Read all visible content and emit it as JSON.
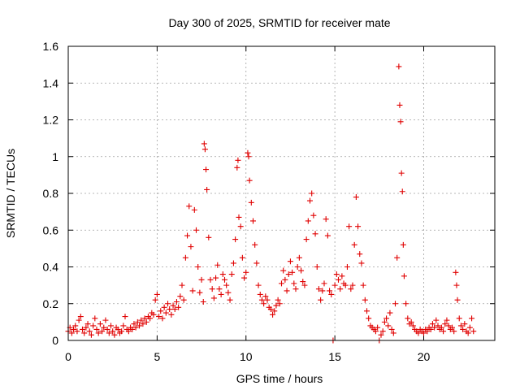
{
  "chart_data": {
    "type": "scatter",
    "title": "Day 300 of 2025, SRMTID for receiver mate",
    "xlabel": "GPS time / hours",
    "ylabel": "SRMTID / TECUs",
    "xlim": [
      0,
      24
    ],
    "ylim": [
      0,
      1.6
    ],
    "xticks": [
      0,
      5,
      10,
      15,
      20
    ],
    "xtick_labels": [
      "0",
      "5",
      "10",
      "15",
      "20"
    ],
    "yticks": [
      0,
      0.2,
      0.4,
      0.6,
      0.8,
      1.0,
      1.2,
      1.4,
      1.6
    ],
    "ytick_labels": [
      "0",
      "0.2",
      "0.4",
      "0.6",
      "0.8",
      "1",
      "1.2",
      "1.4",
      "1.6"
    ],
    "grid": true,
    "marker": "+",
    "color": "#e00000",
    "series": [
      {
        "name": "SRMTID",
        "points": [
          [
            0.0,
            0.05
          ],
          [
            0.1,
            0.07
          ],
          [
            0.2,
            0.04
          ],
          [
            0.3,
            0.06
          ],
          [
            0.4,
            0.08
          ],
          [
            0.5,
            0.05
          ],
          [
            0.6,
            0.11
          ],
          [
            0.7,
            0.13
          ],
          [
            0.8,
            0.06
          ],
          [
            0.9,
            0.04
          ],
          [
            1.0,
            0.07
          ],
          [
            1.1,
            0.09
          ],
          [
            1.2,
            0.05
          ],
          [
            1.3,
            0.03
          ],
          [
            1.4,
            0.08
          ],
          [
            1.5,
            0.12
          ],
          [
            1.6,
            0.06
          ],
          [
            1.7,
            0.04
          ],
          [
            1.8,
            0.09
          ],
          [
            1.9,
            0.05
          ],
          [
            2.0,
            0.07
          ],
          [
            2.1,
            0.11
          ],
          [
            2.2,
            0.06
          ],
          [
            2.3,
            0.04
          ],
          [
            2.4,
            0.08
          ],
          [
            2.5,
            0.05
          ],
          [
            2.6,
            0.03
          ],
          [
            2.7,
            0.07
          ],
          [
            2.8,
            0.06
          ],
          [
            2.9,
            0.04
          ],
          [
            3.0,
            0.05
          ],
          [
            3.1,
            0.08
          ],
          [
            3.2,
            0.13
          ],
          [
            3.3,
            0.06
          ],
          [
            3.4,
            0.05
          ],
          [
            3.5,
            0.07
          ],
          [
            3.6,
            0.06
          ],
          [
            3.7,
            0.09
          ],
          [
            3.8,
            0.07
          ],
          [
            3.9,
            0.1
          ],
          [
            4.0,
            0.08
          ],
          [
            4.1,
            0.11
          ],
          [
            4.2,
            0.09
          ],
          [
            4.3,
            0.12
          ],
          [
            4.4,
            0.1
          ],
          [
            4.5,
            0.13
          ],
          [
            4.6,
            0.12
          ],
          [
            4.7,
            0.15
          ],
          [
            4.8,
            0.14
          ],
          [
            4.9,
            0.22
          ],
          [
            5.0,
            0.25
          ],
          [
            5.1,
            0.13
          ],
          [
            5.2,
            0.16
          ],
          [
            5.3,
            0.12
          ],
          [
            5.4,
            0.18
          ],
          [
            5.5,
            0.15
          ],
          [
            5.6,
            0.2
          ],
          [
            5.7,
            0.17
          ],
          [
            5.8,
            0.14
          ],
          [
            5.9,
            0.19
          ],
          [
            6.0,
            0.17
          ],
          [
            6.1,
            0.21
          ],
          [
            6.2,
            0.18
          ],
          [
            6.3,
            0.24
          ],
          [
            6.4,
            0.3
          ],
          [
            6.5,
            0.22
          ],
          [
            6.6,
            0.45
          ],
          [
            6.7,
            0.57
          ],
          [
            6.8,
            0.73
          ],
          [
            6.9,
            0.51
          ],
          [
            7.0,
            0.27
          ],
          [
            7.1,
            0.71
          ],
          [
            7.2,
            0.6
          ],
          [
            7.3,
            0.4
          ],
          [
            7.4,
            0.26
          ],
          [
            7.5,
            0.33
          ],
          [
            7.6,
            0.21
          ],
          [
            7.65,
            1.07
          ],
          [
            7.7,
            1.04
          ],
          [
            7.75,
            0.93
          ],
          [
            7.8,
            0.82
          ],
          [
            7.9,
            0.56
          ],
          [
            8.0,
            0.33
          ],
          [
            8.1,
            0.28
          ],
          [
            8.2,
            0.23
          ],
          [
            8.3,
            0.34
          ],
          [
            8.4,
            0.41
          ],
          [
            8.5,
            0.28
          ],
          [
            8.6,
            0.25
          ],
          [
            8.7,
            0.36
          ],
          [
            8.8,
            0.33
          ],
          [
            8.9,
            0.3
          ],
          [
            9.0,
            0.26
          ],
          [
            9.1,
            0.22
          ],
          [
            9.2,
            0.36
          ],
          [
            9.3,
            0.42
          ],
          [
            9.4,
            0.55
          ],
          [
            9.5,
            0.94
          ],
          [
            9.55,
            0.98
          ],
          [
            9.6,
            0.67
          ],
          [
            9.7,
            0.62
          ],
          [
            9.8,
            0.45
          ],
          [
            9.9,
            0.34
          ],
          [
            10.0,
            0.37
          ],
          [
            10.1,
            1.02
          ],
          [
            10.15,
            1.0
          ],
          [
            10.2,
            0.87
          ],
          [
            10.3,
            0.75
          ],
          [
            10.4,
            0.65
          ],
          [
            10.5,
            0.52
          ],
          [
            10.6,
            0.42
          ],
          [
            10.7,
            0.3
          ],
          [
            10.8,
            0.25
          ],
          [
            10.9,
            0.22
          ],
          [
            11.0,
            0.2
          ],
          [
            11.1,
            0.24
          ],
          [
            11.2,
            0.22
          ],
          [
            11.3,
            0.18
          ],
          [
            11.4,
            0.17
          ],
          [
            11.5,
            0.14
          ],
          [
            11.6,
            0.16
          ],
          [
            11.7,
            0.19
          ],
          [
            11.8,
            0.22
          ],
          [
            11.9,
            0.2
          ],
          [
            12.0,
            0.31
          ],
          [
            12.1,
            0.38
          ],
          [
            12.2,
            0.33
          ],
          [
            12.3,
            0.27
          ],
          [
            12.4,
            0.36
          ],
          [
            12.5,
            0.43
          ],
          [
            12.6,
            0.37
          ],
          [
            12.7,
            0.31
          ],
          [
            12.8,
            0.28
          ],
          [
            12.9,
            0.4
          ],
          [
            13.0,
            0.45
          ],
          [
            13.1,
            0.38
          ],
          [
            13.2,
            0.32
          ],
          [
            13.3,
            0.3
          ],
          [
            13.4,
            0.55
          ],
          [
            13.5,
            0.65
          ],
          [
            13.6,
            0.76
          ],
          [
            13.7,
            0.8
          ],
          [
            13.8,
            0.68
          ],
          [
            13.9,
            0.58
          ],
          [
            14.0,
            0.4
          ],
          [
            14.1,
            0.28
          ],
          [
            14.2,
            0.22
          ],
          [
            14.3,
            0.27
          ],
          [
            14.4,
            0.31
          ],
          [
            14.5,
            0.66
          ],
          [
            14.6,
            0.57
          ],
          [
            14.7,
            0.27
          ],
          [
            14.8,
            0.25
          ],
          [
            14.9,
            0.0
          ],
          [
            15.0,
            0.3
          ],
          [
            15.1,
            0.36
          ],
          [
            15.2,
            0.33
          ],
          [
            15.3,
            0.28
          ],
          [
            15.4,
            0.35
          ],
          [
            15.5,
            0.31
          ],
          [
            15.6,
            0.3
          ],
          [
            15.7,
            0.4
          ],
          [
            15.8,
            0.62
          ],
          [
            15.9,
            0.28
          ],
          [
            16.0,
            0.3
          ],
          [
            16.1,
            0.52
          ],
          [
            16.2,
            0.78
          ],
          [
            16.3,
            0.62
          ],
          [
            16.4,
            0.47
          ],
          [
            16.5,
            0.42
          ],
          [
            16.6,
            0.3
          ],
          [
            16.7,
            0.22
          ],
          [
            16.8,
            0.16
          ],
          [
            16.9,
            0.12
          ],
          [
            17.0,
            0.08
          ],
          [
            17.1,
            0.07
          ],
          [
            17.2,
            0.06
          ],
          [
            17.3,
            0.05
          ],
          [
            17.4,
            0.07
          ],
          [
            17.5,
            0.0
          ],
          [
            17.6,
            0.03
          ],
          [
            17.7,
            0.05
          ],
          [
            17.8,
            0.1
          ],
          [
            17.9,
            0.12
          ],
          [
            18.0,
            0.08
          ],
          [
            18.1,
            0.15
          ],
          [
            18.2,
            0.06
          ],
          [
            18.3,
            0.04
          ],
          [
            18.4,
            0.2
          ],
          [
            18.5,
            0.45
          ],
          [
            18.6,
            1.49
          ],
          [
            18.65,
            1.28
          ],
          [
            18.7,
            1.19
          ],
          [
            18.75,
            0.91
          ],
          [
            18.8,
            0.81
          ],
          [
            18.85,
            0.52
          ],
          [
            18.9,
            0.35
          ],
          [
            19.0,
            0.2
          ],
          [
            19.1,
            0.12
          ],
          [
            19.2,
            0.09
          ],
          [
            19.3,
            0.1
          ],
          [
            19.4,
            0.08
          ],
          [
            19.5,
            0.06
          ],
          [
            19.6,
            0.05
          ],
          [
            19.7,
            0.04
          ],
          [
            19.8,
            0.06
          ],
          [
            19.9,
            0.05
          ],
          [
            20.0,
            0.04
          ],
          [
            20.1,
            0.06
          ],
          [
            20.2,
            0.05
          ],
          [
            20.3,
            0.07
          ],
          [
            20.4,
            0.06
          ],
          [
            20.5,
            0.09
          ],
          [
            20.6,
            0.07
          ],
          [
            20.7,
            0.11
          ],
          [
            20.8,
            0.08
          ],
          [
            20.9,
            0.06
          ],
          [
            21.0,
            0.07
          ],
          [
            21.1,
            0.05
          ],
          [
            21.2,
            0.09
          ],
          [
            21.3,
            0.11
          ],
          [
            21.4,
            0.08
          ],
          [
            21.5,
            0.06
          ],
          [
            21.6,
            0.07
          ],
          [
            21.7,
            0.05
          ],
          [
            21.8,
            0.37
          ],
          [
            21.85,
            0.3
          ],
          [
            21.9,
            0.22
          ],
          [
            22.0,
            0.12
          ],
          [
            22.1,
            0.08
          ],
          [
            22.2,
            0.06
          ],
          [
            22.3,
            0.09
          ],
          [
            22.4,
            0.05
          ],
          [
            22.5,
            0.04
          ],
          [
            22.6,
            0.07
          ],
          [
            22.7,
            0.12
          ],
          [
            22.8,
            0.05
          ]
        ]
      }
    ]
  }
}
